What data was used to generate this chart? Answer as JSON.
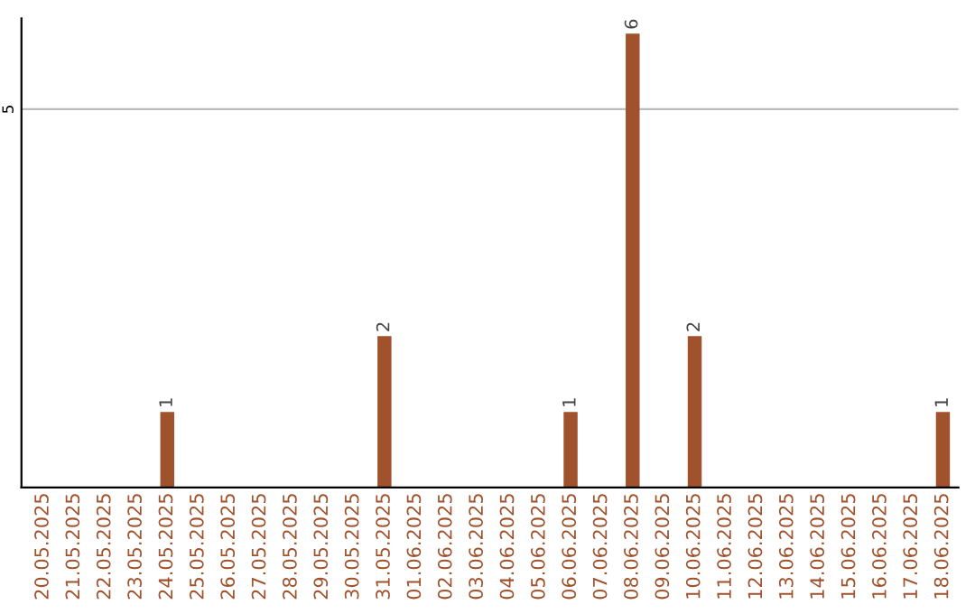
{
  "chart_data": {
    "type": "bar",
    "categories": [
      "20.05.2025",
      "21.05.2025",
      "22.05.2025",
      "23.05.2025",
      "24.05.2025",
      "25.05.2025",
      "26.05.2025",
      "27.05.2025",
      "28.05.2025",
      "29.05.2025",
      "30.05.2025",
      "31.05.2025",
      "01.06.2025",
      "02.06.2025",
      "03.06.2025",
      "04.06.2025",
      "05.06.2025",
      "06.06.2025",
      "07.06.2025",
      "08.06.2025",
      "09.06.2025",
      "10.06.2025",
      "11.06.2025",
      "12.06.2025",
      "13.06.2025",
      "14.06.2025",
      "15.06.2025",
      "16.06.2025",
      "17.06.2025",
      "18.06.2025"
    ],
    "values": [
      0,
      0,
      0,
      0,
      1,
      0,
      0,
      0,
      0,
      0,
      0,
      2,
      0,
      0,
      0,
      0,
      0,
      1,
      0,
      6,
      0,
      2,
      0,
      0,
      0,
      0,
      0,
      0,
      0,
      1
    ],
    "value_labels": [
      null,
      null,
      null,
      null,
      "1",
      null,
      null,
      null,
      null,
      null,
      null,
      "2",
      null,
      null,
      null,
      null,
      null,
      "1",
      null,
      "6",
      null,
      "2",
      null,
      null,
      null,
      null,
      null,
      null,
      null,
      "1"
    ],
    "color": "#a0522d",
    "ylim": [
      0,
      6.2
    ],
    "yticks": [
      5
    ],
    "grid": "y",
    "legend": false
  }
}
